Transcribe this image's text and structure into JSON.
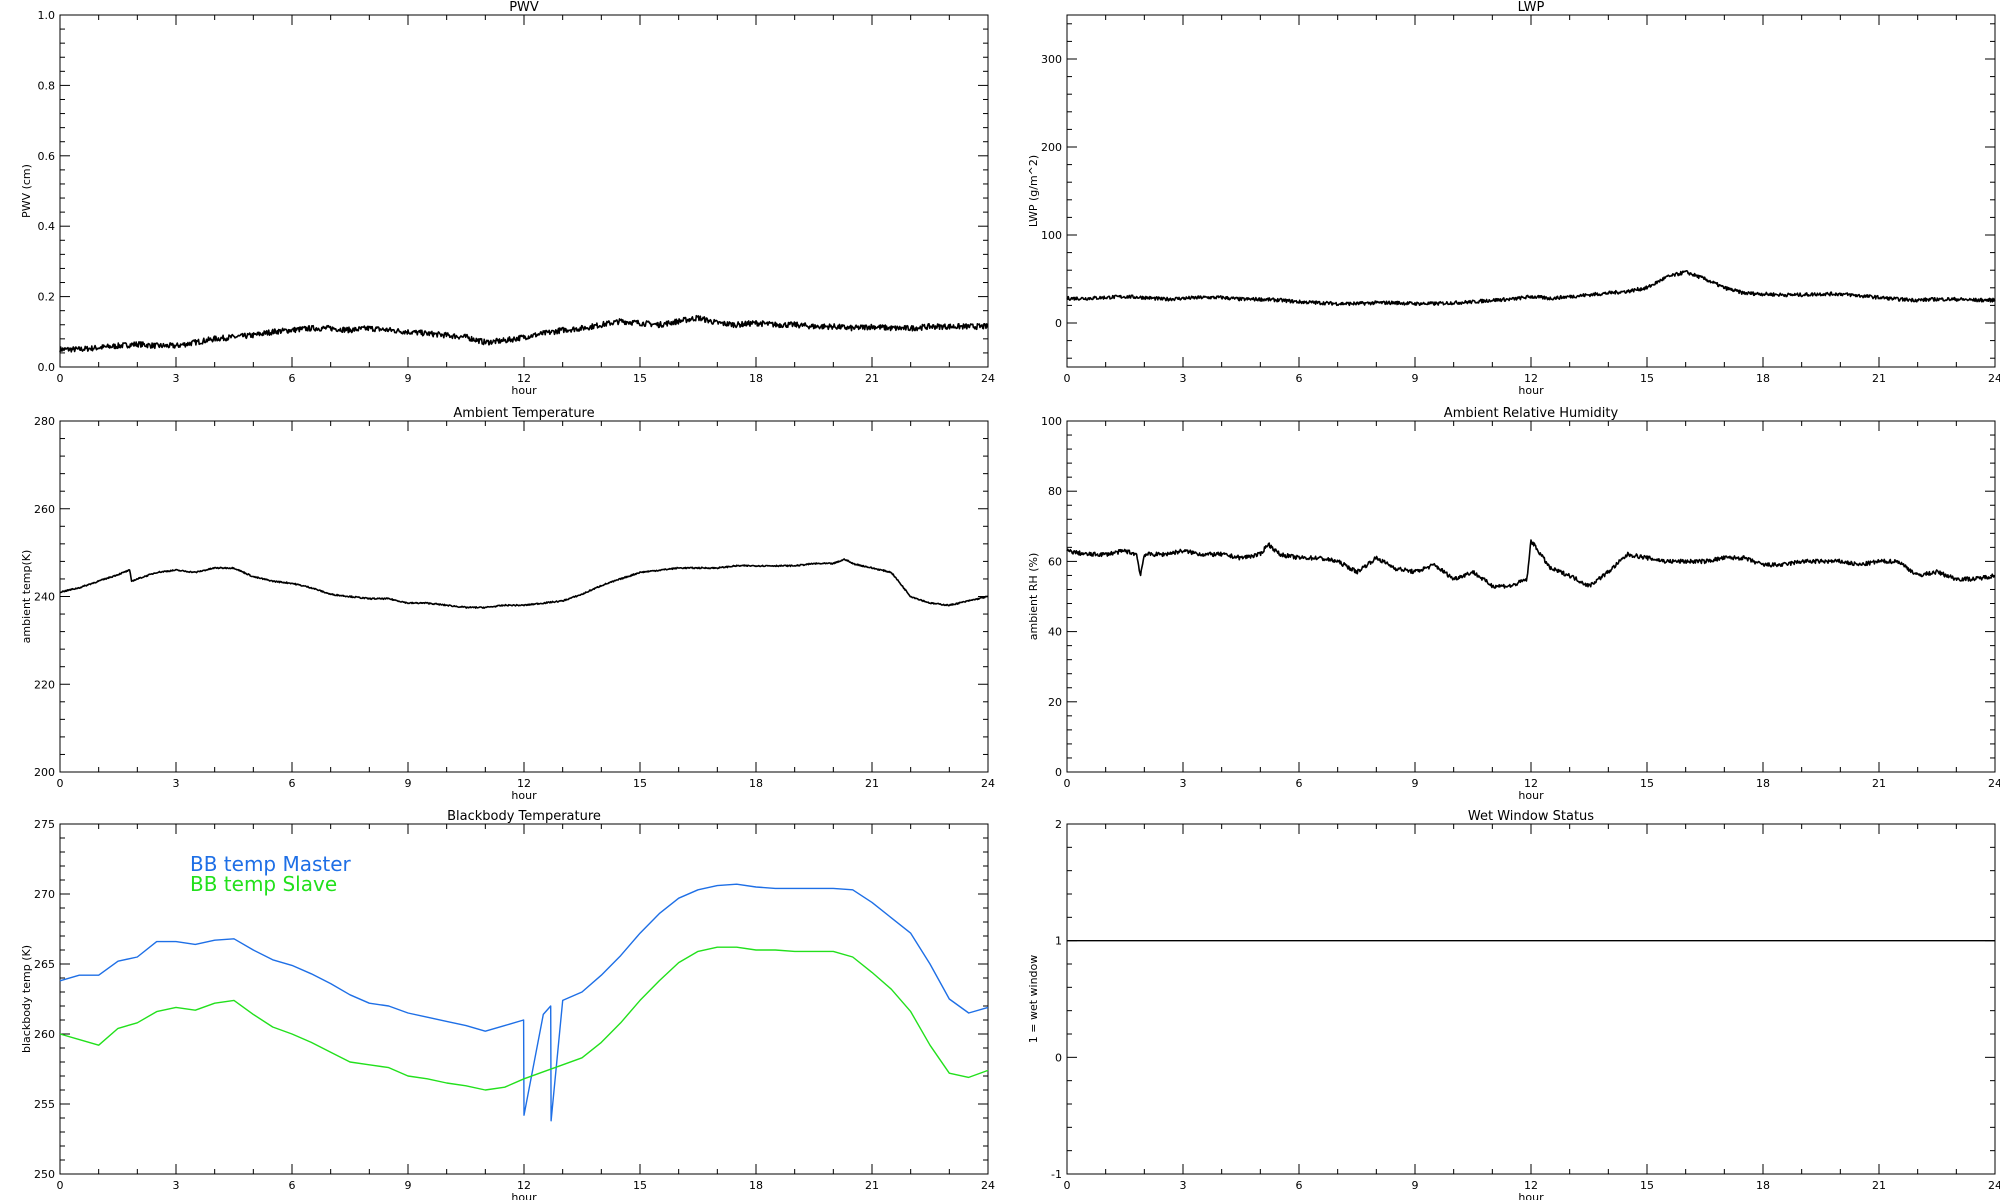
{
  "colors": {
    "trace": "#000000",
    "bb_master": "#1e6fe6",
    "bb_slave": "#22e01c"
  },
  "chart_data": [
    {
      "id": "pwv",
      "type": "line",
      "title": "PWV",
      "xlabel": "hour",
      "ylabel": "PWV (cm)",
      "xlim": [
        0,
        24
      ],
      "ylim": [
        0,
        1.0
      ],
      "xticks": [
        "0",
        "3",
        "6",
        "9",
        "12",
        "15",
        "18",
        "21",
        "24"
      ],
      "yticks": [
        "0.0",
        "0.2",
        "0.4",
        "0.6",
        "0.8",
        "1.0"
      ],
      "noise": 0.008,
      "series": [
        {
          "x": [
            0,
            0.5,
            1,
            1.5,
            2,
            2.5,
            3,
            3.5,
            4,
            4.5,
            5,
            5.5,
            6,
            6.5,
            7,
            7.5,
            8,
            8.5,
            9,
            9.5,
            10,
            10.5,
            11,
            11.5,
            12,
            12.5,
            13,
            13.5,
            14,
            14.5,
            15,
            15.5,
            16,
            16.5,
            17,
            17.5,
            18,
            18.5,
            19,
            19.5,
            20,
            20.5,
            21,
            21.5,
            22,
            22.5,
            23,
            23.5,
            24
          ],
          "y": [
            0.05,
            0.05,
            0.055,
            0.06,
            0.065,
            0.06,
            0.06,
            0.07,
            0.08,
            0.085,
            0.09,
            0.1,
            0.105,
            0.11,
            0.11,
            0.105,
            0.11,
            0.105,
            0.1,
            0.095,
            0.09,
            0.085,
            0.07,
            0.075,
            0.085,
            0.095,
            0.105,
            0.11,
            0.12,
            0.13,
            0.125,
            0.12,
            0.13,
            0.14,
            0.125,
            0.12,
            0.125,
            0.12,
            0.12,
            0.115,
            0.115,
            0.11,
            0.115,
            0.11,
            0.11,
            0.115,
            0.115,
            0.115,
            0.115
          ]
        }
      ]
    },
    {
      "id": "lwp",
      "type": "line",
      "title": "LWP",
      "xlabel": "hour",
      "ylabel": "LWP (g/m^2)",
      "xlim": [
        0,
        24
      ],
      "ylim": [
        -50,
        350
      ],
      "xticks": [
        "0",
        "3",
        "6",
        "9",
        "12",
        "15",
        "18",
        "21",
        "24"
      ],
      "yticks": [
        "0",
        "100",
        "200",
        "300"
      ],
      "noise": 2,
      "series": [
        {
          "x": [
            0,
            0.5,
            1,
            1.5,
            2,
            2.5,
            3,
            3.5,
            4,
            4.5,
            5,
            5.5,
            6,
            6.5,
            7,
            7.5,
            8,
            8.5,
            9,
            9.5,
            10,
            10.5,
            11,
            11.5,
            12,
            12.5,
            13,
            13.5,
            14,
            14.5,
            15,
            15.5,
            16,
            16.5,
            17,
            17.5,
            18,
            18.5,
            19,
            19.5,
            20,
            20.5,
            21,
            21.5,
            22,
            22.5,
            23,
            23.5,
            24
          ],
          "y": [
            28,
            28,
            29,
            30,
            29,
            27,
            28,
            29,
            29,
            27,
            27,
            26,
            24,
            23,
            22,
            22,
            23,
            23,
            22,
            22,
            23,
            24,
            26,
            27,
            30,
            28,
            30,
            32,
            34,
            36,
            40,
            52,
            58,
            50,
            40,
            34,
            33,
            32,
            32,
            33,
            33,
            31,
            29,
            27,
            26,
            27,
            27,
            26,
            26
          ]
        }
      ]
    },
    {
      "id": "ambient-temperature",
      "type": "line",
      "title": "Ambient Temperature",
      "xlabel": "hour",
      "ylabel": "ambient temp(K)",
      "xlim": [
        0,
        24
      ],
      "ylim": [
        200,
        280
      ],
      "xticks": [
        "0",
        "3",
        "6",
        "9",
        "12",
        "15",
        "18",
        "21",
        "24"
      ],
      "yticks": [
        "200",
        "220",
        "240",
        "260",
        "280"
      ],
      "noise": 0.15,
      "series": [
        {
          "x": [
            0,
            0.5,
            1,
            1.5,
            1.8,
            1.85,
            2,
            2.5,
            3,
            3.5,
            4,
            4.5,
            5,
            5.5,
            6,
            6.5,
            7,
            7.5,
            8,
            8.5,
            9,
            9.5,
            10,
            10.5,
            11,
            11.5,
            12,
            12.5,
            13,
            13.5,
            14,
            14.5,
            15,
            15.5,
            16,
            16.5,
            17,
            17.5,
            18,
            18.5,
            19,
            19.5,
            20,
            20.3,
            20.5,
            21,
            21.5,
            22,
            22.5,
            23,
            23.5,
            24
          ],
          "y": [
            241,
            242,
            243.5,
            245,
            246,
            243.5,
            244,
            245.5,
            246,
            245.5,
            246.5,
            246.5,
            244.5,
            243.5,
            243,
            242,
            240.5,
            240,
            239.5,
            239.5,
            238.5,
            238.5,
            238,
            237.5,
            237.5,
            238,
            238,
            238.5,
            239,
            240.5,
            242.5,
            244,
            245.5,
            246,
            246.5,
            246.5,
            246.5,
            247,
            247,
            247,
            247,
            247.5,
            247.5,
            248.5,
            247.5,
            246.5,
            245.5,
            240,
            238.5,
            238,
            239,
            240
          ]
        }
      ]
    },
    {
      "id": "ambient-relative-humidity",
      "type": "line",
      "title": "Ambient Relative Humidity",
      "xlabel": "hour",
      "ylabel": "ambient RH (%)",
      "xlim": [
        0,
        24
      ],
      "ylim": [
        0,
        100
      ],
      "xticks": [
        "0",
        "3",
        "6",
        "9",
        "12",
        "15",
        "18",
        "21",
        "24"
      ],
      "yticks": [
        "0",
        "20",
        "40",
        "60",
        "80",
        "100"
      ],
      "noise": 0.6,
      "series": [
        {
          "x": [
            0,
            0.5,
            1,
            1.5,
            1.8,
            1.9,
            2,
            2.5,
            3,
            3.5,
            4,
            4.5,
            5,
            5.2,
            5.5,
            6,
            6.5,
            7,
            7.5,
            8,
            8.5,
            9,
            9.5,
            10,
            10.5,
            11,
            11.5,
            11.9,
            12,
            12.5,
            13,
            13.5,
            14,
            14.5,
            15,
            15.5,
            16,
            16.5,
            17,
            17.5,
            18,
            18.5,
            19,
            19.5,
            20,
            20.5,
            21,
            21.5,
            22,
            22.5,
            23,
            23.5,
            24
          ],
          "y": [
            63,
            62,
            62,
            63,
            62,
            56,
            62,
            62,
            63,
            62,
            62,
            61,
            62,
            65,
            62,
            61,
            61,
            60,
            57,
            61,
            58,
            57,
            59,
            55,
            57,
            53,
            53,
            55,
            66,
            58,
            56,
            53,
            57,
            62,
            61,
            60,
            60,
            60,
            61,
            61,
            59,
            59,
            60,
            60,
            60,
            59,
            60,
            60,
            56,
            57,
            55,
            55,
            56
          ]
        }
      ]
    },
    {
      "id": "blackbody-temperature",
      "type": "line",
      "title": "Blackbody Temperature",
      "xlabel": "hour",
      "ylabel": "blackbody temp (K)",
      "xlim": [
        0,
        24
      ],
      "ylim": [
        250,
        275
      ],
      "xticks": [
        "0",
        "3",
        "6",
        "9",
        "12",
        "15",
        "18",
        "21",
        "24"
      ],
      "yticks": [
        "250",
        "255",
        "260",
        "265",
        "270",
        "275"
      ],
      "noise": 0,
      "legend": [
        "BB temp Master",
        "BB temp Slave"
      ],
      "series": [
        {
          "name": "BB temp Master",
          "x": [
            0,
            0.5,
            1,
            1.5,
            2,
            2.5,
            3,
            3.5,
            4,
            4.5,
            5,
            5.5,
            6,
            6.5,
            7,
            7.5,
            8,
            8.5,
            9,
            9.5,
            10,
            10.5,
            11,
            11.5,
            11.99,
            12.0,
            12.5,
            12.69,
            12.7,
            13,
            13.5,
            14,
            14.5,
            15,
            15.5,
            16,
            16.5,
            17,
            17.5,
            18,
            18.5,
            19,
            19.5,
            20,
            20.5,
            21,
            21.5,
            22,
            22.5,
            23,
            23.5,
            24
          ],
          "y": [
            263.8,
            264.2,
            264.2,
            265.2,
            265.5,
            266.6,
            266.6,
            266.4,
            266.7,
            266.8,
            266,
            265.3,
            264.9,
            264.3,
            263.6,
            262.8,
            262.2,
            262,
            261.5,
            261.2,
            260.9,
            260.6,
            260.2,
            260.6,
            261,
            254.2,
            261.4,
            262,
            253.8,
            262.4,
            263,
            264.2,
            265.6,
            267.2,
            268.6,
            269.7,
            270.3,
            270.6,
            270.7,
            270.5,
            270.4,
            270.4,
            270.4,
            270.4,
            270.3,
            269.4,
            268.3,
            267.2,
            265,
            262.5,
            261.5,
            261.9
          ]
        },
        {
          "name": "BB temp Slave",
          "x": [
            0,
            0.5,
            1,
            1.5,
            2,
            2.5,
            3,
            3.5,
            4,
            4.5,
            5,
            5.5,
            6,
            6.5,
            7,
            7.5,
            8,
            8.5,
            9,
            9.5,
            10,
            10.5,
            11,
            11.5,
            12,
            12.5,
            13,
            13.5,
            14,
            14.5,
            15,
            15.5,
            16,
            16.5,
            17,
            17.5,
            18,
            18.5,
            19,
            19.5,
            20,
            20.5,
            21,
            21.5,
            22,
            22.5,
            23,
            23.5,
            24
          ],
          "y": [
            260,
            259.6,
            259.2,
            260.4,
            260.8,
            261.6,
            261.9,
            261.7,
            262.2,
            262.4,
            261.4,
            260.5,
            260,
            259.4,
            258.7,
            258,
            257.8,
            257.6,
            257,
            256.8,
            256.5,
            256.3,
            256,
            256.2,
            256.8,
            257.3,
            257.8,
            258.3,
            259.4,
            260.8,
            262.4,
            263.8,
            265.1,
            265.9,
            266.2,
            266.2,
            266,
            266,
            265.9,
            265.9,
            265.9,
            265.5,
            264.4,
            263.2,
            261.6,
            259.2,
            257.2,
            256.9,
            257.4
          ]
        }
      ]
    },
    {
      "id": "wet-window-status",
      "type": "line",
      "title": "Wet Window Status",
      "xlabel": "hour",
      "ylabel": "1 = wet window",
      "xlim": [
        0,
        24
      ],
      "ylim": [
        -1,
        2
      ],
      "xticks": [
        "0",
        "3",
        "6",
        "9",
        "12",
        "15",
        "18",
        "21",
        "24"
      ],
      "yticks": [
        "-1",
        "0",
        "1",
        "2"
      ],
      "noise": 0,
      "series": [
        {
          "x": [
            0,
            24
          ],
          "y": [
            1,
            1
          ]
        }
      ]
    }
  ]
}
